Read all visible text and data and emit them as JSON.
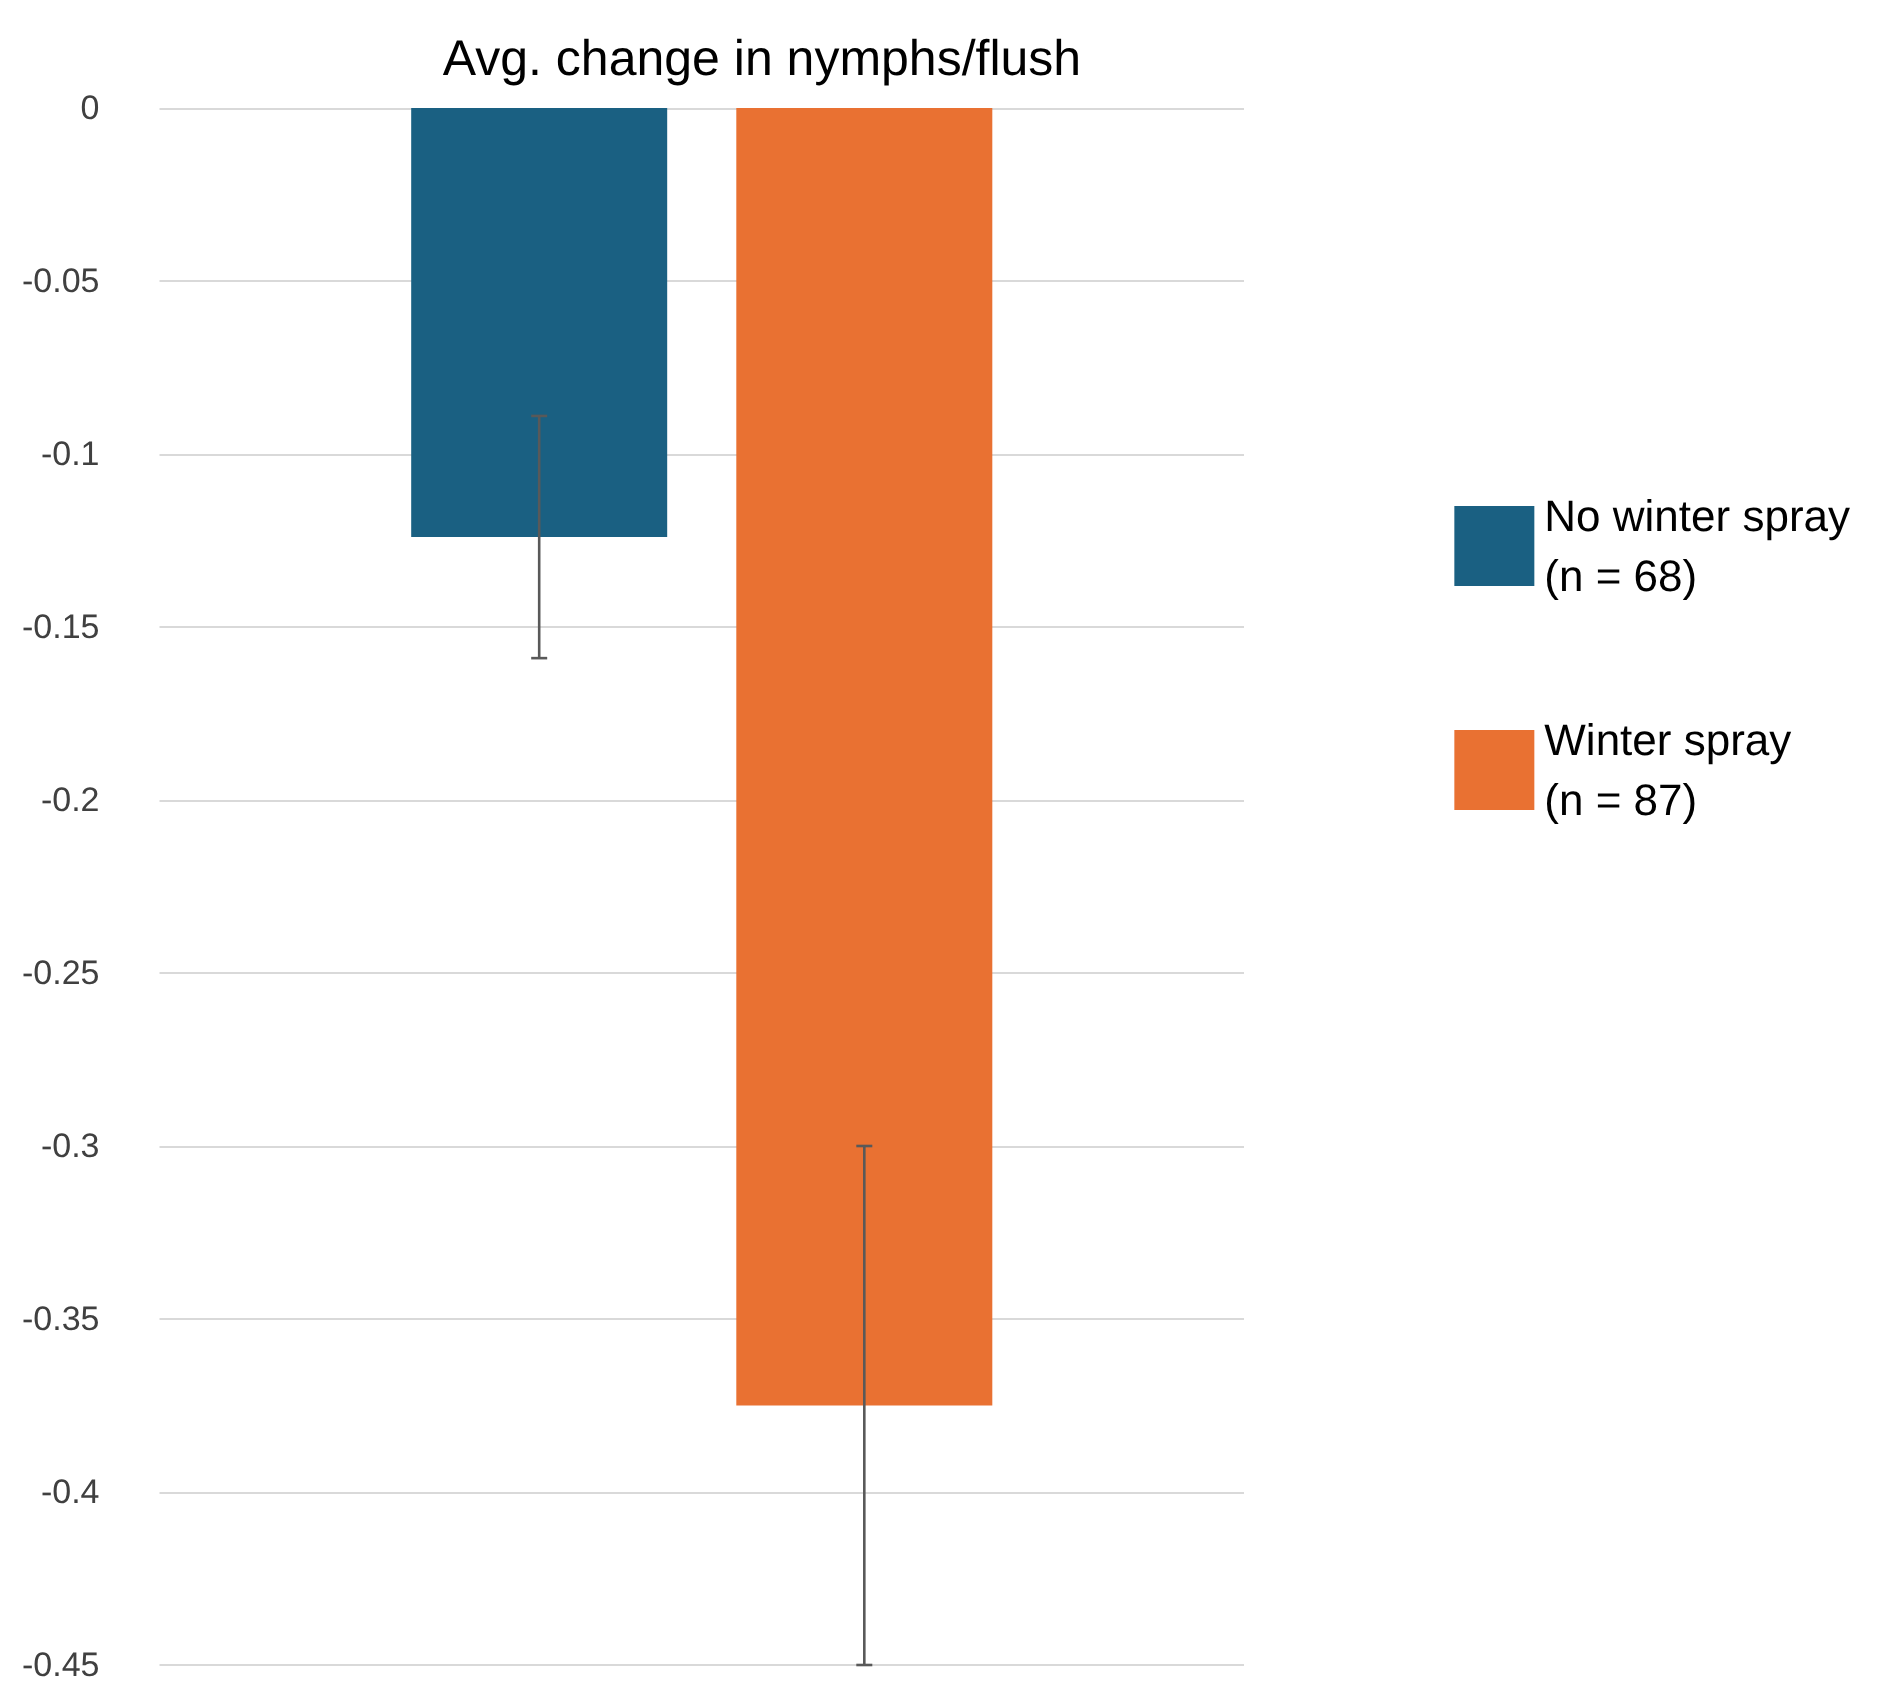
{
  "chart_data": {
    "type": "bar",
    "title": "Avg. change in nymphs/flush",
    "categories": [
      null
    ],
    "series": [
      {
        "name": "No winter spray\n(n = 68)",
        "color": "#1a6082",
        "values": [
          -0.124
        ],
        "errors": [
          0.035
        ]
      },
      {
        "name": "Winter spray\n(n = 87)",
        "color": "#e97132",
        "values": [
          -0.375
        ],
        "errors": [
          0.075
        ]
      }
    ],
    "ylim": [
      -0.45,
      0
    ],
    "yticks": [
      0,
      -0.05,
      -0.1,
      -0.15,
      -0.2,
      -0.25,
      -0.3,
      -0.35,
      -0.4,
      -0.45
    ],
    "grid": "y",
    "legend": "right"
  }
}
